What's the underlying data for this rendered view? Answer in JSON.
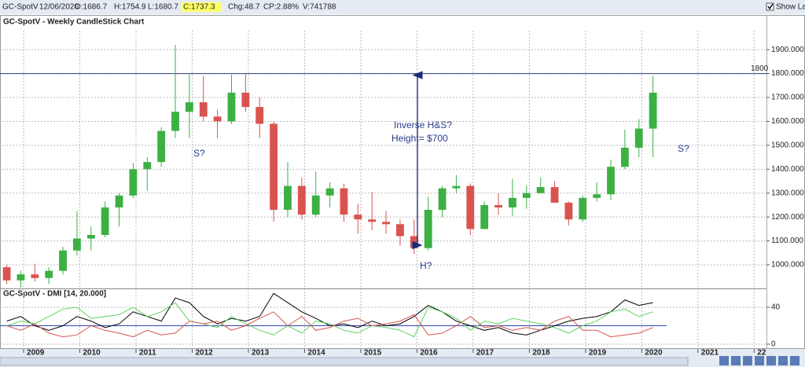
{
  "toolbar": {
    "symbol": "GC-SpotV",
    "date": "12/06/2020",
    "open": "O:1686.7",
    "high": "H:1754.9",
    "low": "L:1680.7",
    "close": "C:1737.3",
    "change": "Chg:48.7",
    "change_pct": "CP:2.88%",
    "volume": "V:741788",
    "show_last": "Show Last"
  },
  "chart_data": [
    {
      "type": "candlestick",
      "title": "GC-SpotV - Weekly CandleStick Chart",
      "up_color": "#3cb043",
      "down_color": "#d9534f",
      "x": [
        2008.7,
        2008.95,
        2009.2,
        2009.45,
        2009.7,
        2009.95,
        2010.2,
        2010.45,
        2010.7,
        2010.95,
        2011.2,
        2011.45,
        2011.7,
        2011.95,
        2012.2,
        2012.45,
        2012.7,
        2012.95,
        2013.2,
        2013.45,
        2013.7,
        2013.95,
        2014.2,
        2014.45,
        2014.7,
        2014.95,
        2015.2,
        2015.45,
        2015.7,
        2015.95,
        2016.2,
        2016.45,
        2016.7,
        2016.95,
        2017.2,
        2017.45,
        2017.7,
        2017.95,
        2018.2,
        2018.45,
        2018.7,
        2018.95,
        2019.2,
        2019.45,
        2019.7,
        2019.95,
        2020.2
      ],
      "open": [
        990,
        935,
        960,
        945,
        975,
        1060,
        1110,
        1125,
        1240,
        1290,
        1400,
        1430,
        1560,
        1640,
        1680,
        1620,
        1600,
        1720,
        1660,
        1590,
        1230,
        1330,
        1210,
        1290,
        1320,
        1210,
        1190,
        1180,
        1170,
        1120,
        1070,
        1230,
        1320,
        1330,
        1150,
        1250,
        1240,
        1280,
        1300,
        1325,
        1260,
        1190,
        1280,
        1295,
        1410,
        1490,
        1570
      ],
      "high": [
        1000,
        975,
        1005,
        990,
        1075,
        1225,
        1160,
        1265,
        1300,
        1425,
        1450,
        1575,
        1920,
        1800,
        1790,
        1650,
        1795,
        1800,
        1700,
        1600,
        1430,
        1365,
        1390,
        1345,
        1340,
        1255,
        1305,
        1225,
        1190,
        1190,
        1285,
        1330,
        1375,
        1340,
        1265,
        1300,
        1360,
        1330,
        1365,
        1350,
        1265,
        1290,
        1345,
        1440,
        1565,
        1610,
        1790
      ],
      "low": [
        920,
        905,
        930,
        920,
        960,
        1040,
        1060,
        1115,
        1160,
        1280,
        1310,
        1410,
        1530,
        1530,
        1600,
        1530,
        1590,
        1640,
        1530,
        1180,
        1200,
        1190,
        1200,
        1240,
        1180,
        1130,
        1145,
        1130,
        1080,
        1045,
        1060,
        1200,
        1300,
        1125,
        1150,
        1210,
        1205,
        1235,
        1300,
        1260,
        1165,
        1180,
        1265,
        1270,
        1400,
        1450,
        1450
      ],
      "close": [
        935,
        960,
        945,
        975,
        1060,
        1110,
        1125,
        1240,
        1290,
        1400,
        1430,
        1560,
        1640,
        1680,
        1620,
        1600,
        1720,
        1660,
        1590,
        1230,
        1330,
        1210,
        1290,
        1320,
        1210,
        1190,
        1180,
        1170,
        1120,
        1070,
        1230,
        1320,
        1330,
        1150,
        1250,
        1240,
        1280,
        1300,
        1325,
        1260,
        1190,
        1280,
        1295,
        1410,
        1490,
        1570,
        1720
      ],
      "xlim": [
        2008.58,
        2022.22
      ],
      "xticks": [
        2009,
        2010,
        2011,
        2012,
        2013,
        2014,
        2015,
        2016,
        2017,
        2018,
        2019,
        2020,
        2021,
        {
          "value": 2022,
          "label": "22"
        }
      ],
      "ylim": [
        908,
        1986
      ],
      "yticks": [
        {
          "value": 1000,
          "label": "1000.000"
        },
        {
          "value": 1100,
          "label": "1100.000"
        },
        {
          "value": 1200,
          "label": "1200.000"
        },
        {
          "value": 1300,
          "label": "1300.000"
        },
        {
          "value": 1400,
          "label": "1400.000"
        },
        {
          "value": 1500,
          "label": "1500.000"
        },
        {
          "value": 1600,
          "label": "1600.000"
        },
        {
          "value": 1700,
          "label": "1700.000"
        },
        {
          "value": 1800,
          "label": "1800.000"
        },
        {
          "value": 1900,
          "label": "1900.000"
        }
      ],
      "grid": true,
      "hline": {
        "value": 1800,
        "label": "1800",
        "color": "#2f3f7f"
      },
      "annotations": [
        "S?",
        "Inverse H&S?",
        "Height= $700",
        "H?",
        "S?"
      ]
    },
    {
      "type": "line",
      "title": "GC-SpotV - DMI [14, 20.000]",
      "x": [
        2008.7,
        2008.95,
        2009.2,
        2009.45,
        2009.7,
        2009.95,
        2010.2,
        2010.45,
        2010.7,
        2010.95,
        2011.2,
        2011.45,
        2011.7,
        2011.95,
        2012.2,
        2012.45,
        2012.7,
        2012.95,
        2013.2,
        2013.45,
        2013.7,
        2013.95,
        2014.2,
        2014.45,
        2014.7,
        2014.95,
        2015.2,
        2015.45,
        2015.7,
        2015.95,
        2016.2,
        2016.45,
        2016.7,
        2016.95,
        2017.2,
        2017.45,
        2017.7,
        2017.95,
        2018.2,
        2018.45,
        2018.7,
        2018.95,
        2019.2,
        2019.45,
        2019.7,
        2019.95,
        2020.2
      ],
      "series": [
        {
          "color": "#000000",
          "values": [
            25,
            30,
            20,
            15,
            20,
            30,
            25,
            18,
            22,
            35,
            30,
            25,
            50,
            45,
            30,
            22,
            28,
            25,
            30,
            55,
            45,
            35,
            28,
            20,
            22,
            18,
            25,
            20,
            22,
            30,
            42,
            35,
            25,
            20,
            15,
            18,
            12,
            10,
            15,
            20,
            25,
            28,
            30,
            35,
            48,
            42,
            45
          ]
        },
        {
          "color": "#5fd35f",
          "values": [
            20,
            25,
            22,
            30,
            38,
            40,
            28,
            30,
            32,
            40,
            30,
            35,
            45,
            25,
            22,
            18,
            30,
            22,
            15,
            10,
            20,
            12,
            25,
            22,
            15,
            12,
            20,
            18,
            15,
            8,
            40,
            35,
            28,
            15,
            25,
            22,
            28,
            25,
            22,
            18,
            12,
            20,
            25,
            35,
            38,
            30,
            35
          ]
        },
        {
          "color": "#d9534f",
          "values": [
            20,
            15,
            22,
            12,
            8,
            10,
            20,
            15,
            12,
            8,
            15,
            10,
            12,
            25,
            22,
            25,
            15,
            20,
            28,
            35,
            20,
            30,
            15,
            18,
            25,
            28,
            20,
            22,
            25,
            32,
            10,
            12,
            20,
            30,
            18,
            20,
            15,
            18,
            15,
            25,
            30,
            15,
            15,
            8,
            10,
            12,
            18
          ]
        }
      ],
      "reference_line": {
        "value": 20,
        "color": "#3b4fb8"
      },
      "xlim": [
        2008.58,
        2022.22
      ],
      "ylim": [
        -4.3,
        58.7
      ],
      "yticks": [
        0,
        40
      ],
      "grid": true
    }
  ]
}
